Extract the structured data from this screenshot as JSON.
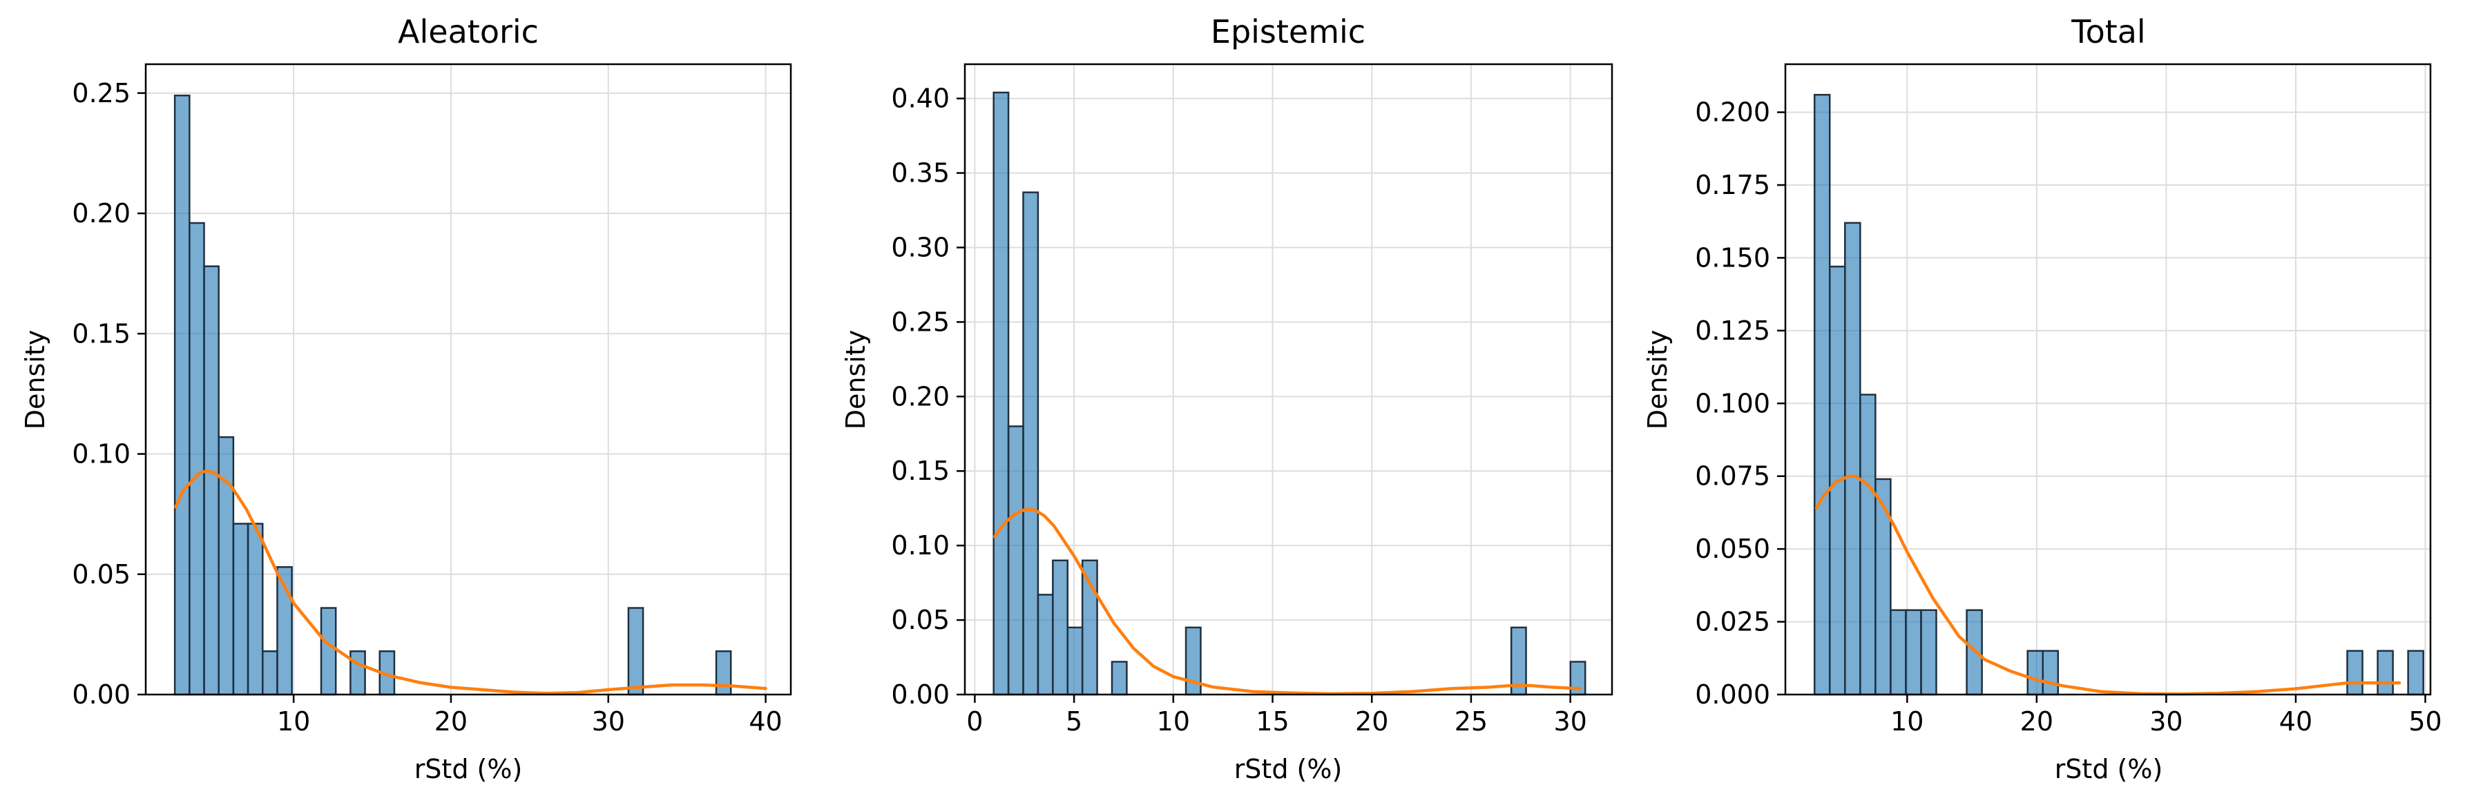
{
  "chart_data": [
    {
      "type": "bar",
      "title": "Aleatoric",
      "xlabel": "rStd (%)",
      "ylabel": "Density",
      "xlim": [
        0.6,
        41.6
      ],
      "ylim": [
        0,
        0.262
      ],
      "xticks": [
        10,
        20,
        30,
        40
      ],
      "yticks": [
        0.0,
        0.05,
        0.1,
        0.15,
        0.2,
        0.25
      ],
      "ytick_labels": [
        "0.00",
        "0.05",
        "0.10",
        "0.15",
        "0.20",
        "0.25"
      ],
      "grid": true,
      "bin_width": 0.93,
      "bin_start": 2.45,
      "values": [
        0.249,
        0.196,
        0.178,
        0.107,
        0.071,
        0.071,
        0.018,
        0.053,
        0,
        0,
        0.036,
        0,
        0.018,
        0,
        0.018,
        0,
        0,
        0,
        0,
        0,
        0,
        0,
        0,
        0,
        0,
        0,
        0,
        0,
        0,
        0,
        0,
        0.036,
        0,
        0,
        0,
        0,
        0,
        0.018
      ],
      "kde": {
        "x": [
          2.5,
          3,
          4,
          4.5,
          5,
          6,
          7,
          8,
          9,
          10,
          12,
          14,
          16,
          18,
          20,
          22,
          24,
          26,
          28,
          30,
          32,
          34,
          36,
          38,
          40
        ],
        "y": [
          0.078,
          0.085,
          0.092,
          0.093,
          0.092,
          0.087,
          0.077,
          0.064,
          0.05,
          0.038,
          0.022,
          0.013,
          0.008,
          0.005,
          0.003,
          0.002,
          0.001,
          0.0005,
          0.0008,
          0.002,
          0.003,
          0.004,
          0.004,
          0.0035,
          0.0025
        ]
      },
      "colors": {
        "bar": "#1f77b4",
        "edge": "#1f3040",
        "kde": "#ff7f0e"
      }
    },
    {
      "type": "bar",
      "title": "Epistemic",
      "xlabel": "rStd (%)",
      "ylabel": "Density",
      "xlim": [
        -0.5,
        32.1
      ],
      "ylim": [
        0,
        0.423
      ],
      "xticks": [
        0,
        5,
        10,
        15,
        20,
        25,
        30
      ],
      "yticks": [
        0.0,
        0.05,
        0.1,
        0.15,
        0.2,
        0.25,
        0.3,
        0.35,
        0.4
      ],
      "ytick_labels": [
        "0.00",
        "0.05",
        "0.10",
        "0.15",
        "0.20",
        "0.25",
        "0.30",
        "0.35",
        "0.40"
      ],
      "grid": true,
      "bin_width": 0.745,
      "bin_start": 0.95,
      "values": [
        0.404,
        0.18,
        0.337,
        0.067,
        0.09,
        0.045,
        0.09,
        0,
        0.022,
        0,
        0,
        0,
        0,
        0.045,
        0,
        0,
        0,
        0,
        0,
        0,
        0,
        0,
        0,
        0,
        0,
        0,
        0,
        0,
        0,
        0,
        0,
        0,
        0,
        0,
        0,
        0.045,
        0,
        0,
        0,
        0.022
      ],
      "kde": {
        "x": [
          1,
          1.5,
          2,
          2.5,
          3,
          3.5,
          4,
          5,
          6,
          7,
          8,
          9,
          10,
          12,
          14,
          16,
          18,
          20,
          22,
          24,
          26,
          27,
          28,
          29,
          30.5
        ],
        "y": [
          0.106,
          0.115,
          0.121,
          0.124,
          0.124,
          0.12,
          0.113,
          0.093,
          0.07,
          0.048,
          0.031,
          0.019,
          0.012,
          0.005,
          0.002,
          0.001,
          0.0005,
          0.0008,
          0.002,
          0.004,
          0.005,
          0.006,
          0.006,
          0.005,
          0.004
        ]
      },
      "colors": {
        "bar": "#1f77b4",
        "edge": "#1f3040",
        "kde": "#ff7f0e"
      }
    },
    {
      "type": "bar",
      "title": "Total",
      "xlabel": "rStd (%)",
      "ylabel": "Density",
      "xlim": [
        0.6,
        50.4
      ],
      "ylim": [
        0,
        0.2165
      ],
      "xticks": [
        10,
        20,
        30,
        40,
        50
      ],
      "yticks": [
        0.0,
        0.025,
        0.05,
        0.075,
        0.1,
        0.125,
        0.15,
        0.175,
        0.2
      ],
      "ytick_labels": [
        "0.000",
        "0.025",
        "0.050",
        "0.075",
        "0.100",
        "0.125",
        "0.150",
        "0.175",
        "0.200"
      ],
      "grid": true,
      "bin_width": 1.175,
      "bin_start": 2.85,
      "values": [
        0.206,
        0.147,
        0.162,
        0.103,
        0.074,
        0.029,
        0.029,
        0.029,
        0,
        0,
        0.029,
        0,
        0,
        0,
        0.015,
        0.015,
        0,
        0,
        0,
        0,
        0,
        0,
        0,
        0,
        0,
        0,
        0,
        0,
        0,
        0,
        0,
        0,
        0,
        0,
        0,
        0.015,
        0,
        0.015,
        0,
        0.015
      ],
      "kde": {
        "x": [
          3,
          3.5,
          4.5,
          5.5,
          6,
          7,
          8,
          9,
          10,
          12,
          14,
          16,
          18,
          20,
          22,
          25,
          28,
          31,
          34,
          37,
          40,
          42,
          44,
          46,
          48
        ],
        "y": [
          0.064,
          0.068,
          0.073,
          0.075,
          0.075,
          0.072,
          0.066,
          0.058,
          0.049,
          0.033,
          0.02,
          0.012,
          0.008,
          0.005,
          0.003,
          0.001,
          0.0003,
          0.0002,
          0.0004,
          0.001,
          0.002,
          0.003,
          0.004,
          0.004,
          0.004
        ]
      },
      "colors": {
        "bar": "#1f77b4",
        "edge": "#1f3040",
        "kde": "#ff7f0e"
      }
    }
  ]
}
